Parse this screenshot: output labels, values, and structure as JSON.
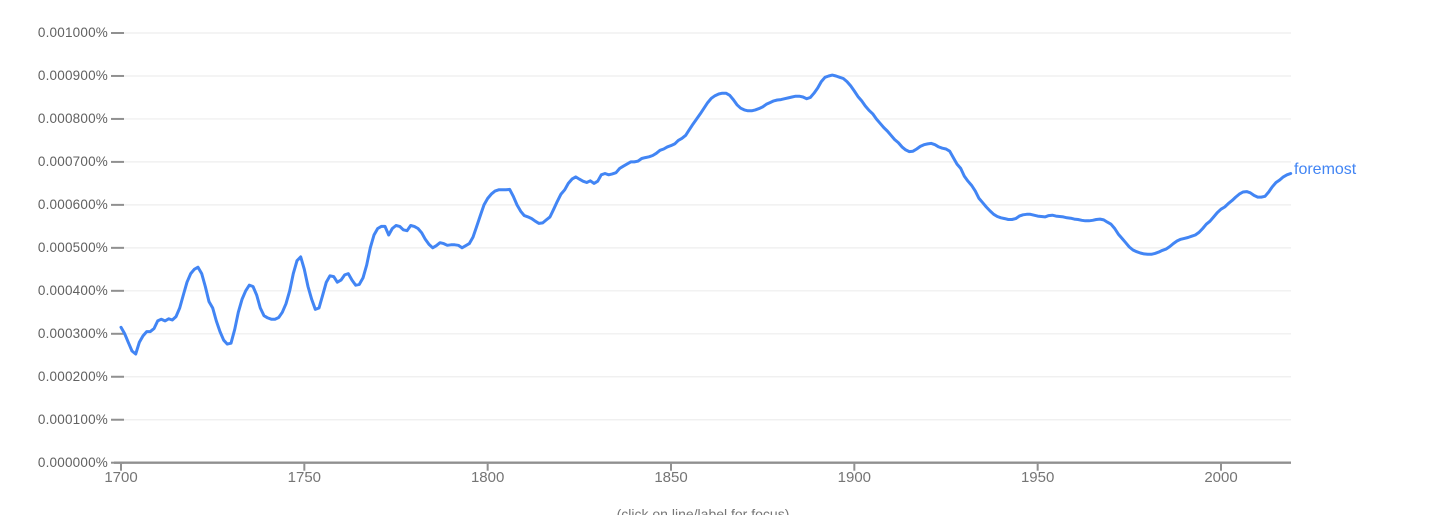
{
  "chart": {
    "series_label": "foremost",
    "footer_note": "(click on line/label for focus)",
    "colors": {
      "line": "#4285f4",
      "series_label": "#4285f4",
      "grid": "#eeeeee",
      "axis": "#909090",
      "y_tick_label": "#616161",
      "x_tick_label": "#757575",
      "footer": "#757575",
      "background": "#ffffff"
    }
  },
  "chart_data": {
    "type": "line",
    "title": "",
    "xlabel": "",
    "ylabel": "",
    "grid": true,
    "legend": [
      "foremost"
    ],
    "legend_position": "end-of-line",
    "xlim": [
      1700,
      2019
    ],
    "ylim_percent": [
      0,
      0.001
    ],
    "x_ticks": [
      1700,
      1750,
      1800,
      1850,
      1900,
      1950,
      2000
    ],
    "y_tick_labels": [
      "0.000000%",
      "0.000100%",
      "0.000200%",
      "0.000300%",
      "0.000400%",
      "0.000500%",
      "0.000600%",
      "0.000700%",
      "0.000800%",
      "0.000900%",
      "0.001000%"
    ],
    "y_unit_note": "series values are percent x 1e-4 (e.g. 6.73 means 0.000673%)",
    "series": [
      {
        "name": "foremost",
        "x_start": 1700,
        "x_step": 1,
        "values": [
          3.15,
          3.0,
          2.8,
          2.6,
          2.53,
          2.8,
          2.95,
          3.05,
          3.05,
          3.12,
          3.3,
          3.34,
          3.3,
          3.35,
          3.32,
          3.4,
          3.6,
          3.9,
          4.2,
          4.4,
          4.5,
          4.55,
          4.4,
          4.1,
          3.75,
          3.6,
          3.3,
          3.05,
          2.85,
          2.76,
          2.78,
          3.1,
          3.5,
          3.8,
          4.0,
          4.13,
          4.1,
          3.9,
          3.6,
          3.42,
          3.37,
          3.34,
          3.34,
          3.38,
          3.5,
          3.7,
          4.0,
          4.4,
          4.7,
          4.79,
          4.5,
          4.1,
          3.8,
          3.57,
          3.6,
          3.9,
          4.2,
          4.35,
          4.33,
          4.2,
          4.25,
          4.37,
          4.4,
          4.25,
          4.13,
          4.15,
          4.3,
          4.6,
          5.0,
          5.3,
          5.45,
          5.5,
          5.5,
          5.3,
          5.45,
          5.52,
          5.5,
          5.42,
          5.4,
          5.52,
          5.5,
          5.45,
          5.35,
          5.2,
          5.08,
          5.0,
          5.05,
          5.12,
          5.1,
          5.06,
          5.07,
          5.07,
          5.06,
          5.0,
          5.05,
          5.1,
          5.25,
          5.5,
          5.75,
          6.0,
          6.15,
          6.25,
          6.32,
          6.35,
          6.35,
          6.35,
          6.36,
          6.2,
          6.0,
          5.85,
          5.75,
          5.72,
          5.68,
          5.62,
          5.57,
          5.58,
          5.65,
          5.72,
          5.9,
          6.08,
          6.25,
          6.35,
          6.5,
          6.6,
          6.65,
          6.6,
          6.55,
          6.52,
          6.56,
          6.5,
          6.55,
          6.7,
          6.73,
          6.7,
          6.72,
          6.75,
          6.85,
          6.9,
          6.95,
          7.0,
          7.0,
          7.02,
          7.08,
          7.1,
          7.12,
          7.15,
          7.2,
          7.27,
          7.3,
          7.35,
          7.38,
          7.42,
          7.5,
          7.55,
          7.62,
          7.75,
          7.88,
          8.0,
          8.12,
          8.25,
          8.38,
          8.48,
          8.54,
          8.58,
          8.6,
          8.6,
          8.55,
          8.45,
          8.33,
          8.25,
          8.21,
          8.19,
          8.19,
          8.21,
          8.24,
          8.28,
          8.34,
          8.38,
          8.42,
          8.44,
          8.45,
          8.47,
          8.49,
          8.51,
          8.53,
          8.53,
          8.51,
          8.47,
          8.5,
          8.6,
          8.72,
          8.87,
          8.97,
          9.0,
          9.02,
          9.0,
          8.97,
          8.94,
          8.87,
          8.77,
          8.65,
          8.52,
          8.42,
          8.3,
          8.2,
          8.12,
          8.0,
          7.9,
          7.8,
          7.72,
          7.62,
          7.52,
          7.45,
          7.35,
          7.28,
          7.24,
          7.25,
          7.3,
          7.36,
          7.4,
          7.42,
          7.43,
          7.4,
          7.35,
          7.32,
          7.3,
          7.25,
          7.1,
          6.95,
          6.85,
          6.67,
          6.55,
          6.45,
          6.32,
          6.15,
          6.05,
          5.95,
          5.86,
          5.78,
          5.73,
          5.7,
          5.68,
          5.66,
          5.66,
          5.68,
          5.74,
          5.77,
          5.78,
          5.78,
          5.76,
          5.74,
          5.73,
          5.72,
          5.75,
          5.76,
          5.74,
          5.73,
          5.72,
          5.7,
          5.69,
          5.67,
          5.66,
          5.64,
          5.63,
          5.63,
          5.64,
          5.66,
          5.67,
          5.65,
          5.6,
          5.55,
          5.45,
          5.32,
          5.22,
          5.12,
          5.02,
          4.95,
          4.91,
          4.88,
          4.86,
          4.85,
          4.85,
          4.87,
          4.9,
          4.94,
          4.97,
          5.03,
          5.1,
          5.16,
          5.2,
          5.22,
          5.24,
          5.27,
          5.3,
          5.36,
          5.45,
          5.55,
          5.62,
          5.72,
          5.82,
          5.9,
          5.95,
          6.03,
          6.1,
          6.18,
          6.25,
          6.3,
          6.31,
          6.28,
          6.22,
          6.18,
          6.18,
          6.2,
          6.3,
          6.42,
          6.52,
          6.58,
          6.65,
          6.7,
          6.73
        ]
      }
    ]
  }
}
